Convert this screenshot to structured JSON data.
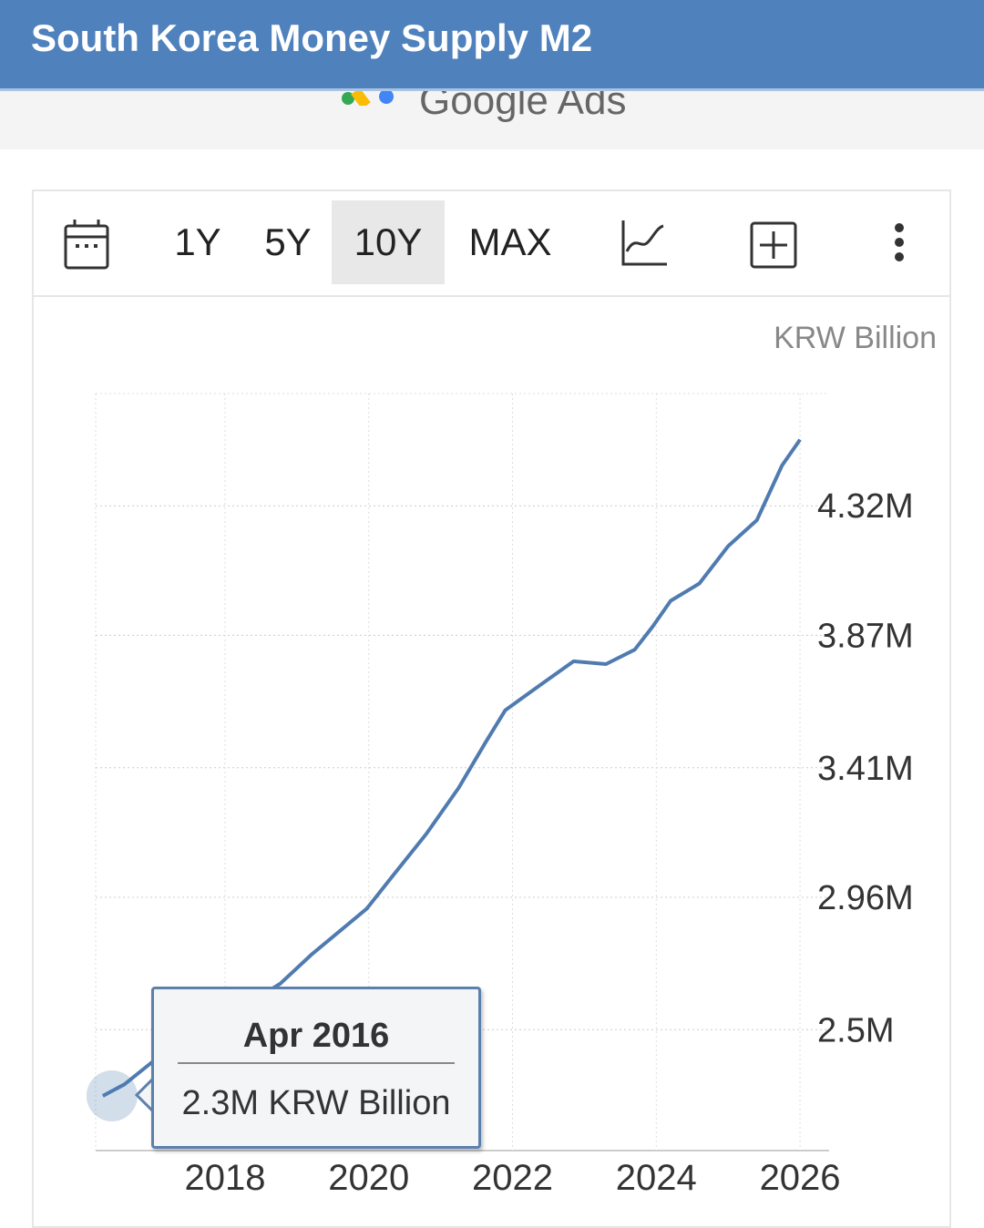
{
  "header": {
    "title": "South Korea Money Supply M2"
  },
  "ad": {
    "label": "Google Ads"
  },
  "toolbar": {
    "ranges": [
      "1Y",
      "5Y",
      "10Y",
      "MAX"
    ],
    "active": "10Y",
    "icons": [
      "calendar-icon",
      "line-chart-icon",
      "add-box-icon",
      "more-vertical-icon"
    ]
  },
  "colors": {
    "header": "#4f81bd",
    "line": "#4f7bb0",
    "tooltip_border": "#5b80ad"
  },
  "tooltip": {
    "date": "Apr 2016",
    "value": "2.3M KRW Billion"
  },
  "chart_data": {
    "type": "line",
    "title": "South Korea Money Supply M2",
    "unit": "KRW Billion",
    "xlim": [
      2016.2,
      2026.05
    ],
    "ylim": [
      2.08,
      4.71
    ],
    "x_ticks": [
      2018,
      2020,
      2022,
      2024,
      2026
    ],
    "x_tick_labels": [
      "2018",
      "2020",
      "2022",
      "2024",
      "2026"
    ],
    "y_ticks": [
      2.5,
      2.96,
      3.41,
      3.87,
      4.32
    ],
    "y_tick_labels": [
      "2.5M",
      "2.96M",
      "3.41M",
      "3.87M",
      "4.32M"
    ],
    "grid": true,
    "series": [
      {
        "name": "Money Supply M2",
        "x": [
          2016.3,
          2016.6,
          2017.0,
          2017.5,
          2018.0,
          2018.77,
          2019.2,
          2019.97,
          2020.35,
          2020.8,
          2021.25,
          2021.63,
          2021.9,
          2022.4,
          2022.85,
          2023.3,
          2023.7,
          2023.95,
          2024.2,
          2024.6,
          2025.0,
          2025.4,
          2025.75,
          2026.0
        ],
        "y": [
          2.27,
          2.31,
          2.39,
          2.46,
          2.54,
          2.66,
          2.76,
          2.92,
          3.04,
          3.18,
          3.34,
          3.5,
          3.61,
          3.7,
          3.78,
          3.77,
          3.82,
          3.9,
          3.99,
          4.05,
          4.18,
          4.27,
          4.46,
          4.55
        ]
      }
    ]
  }
}
